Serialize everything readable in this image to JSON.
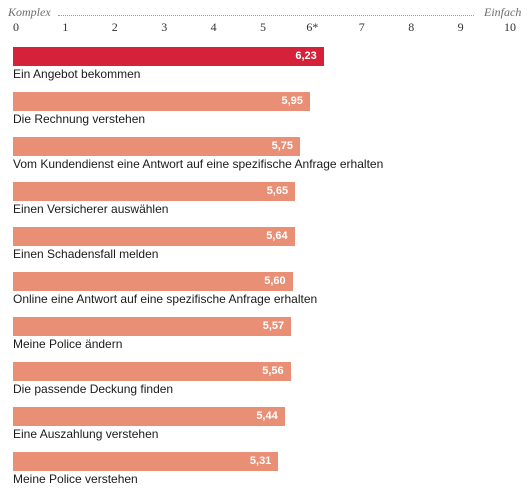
{
  "chart_data": {
    "type": "bar",
    "orientation": "horizontal",
    "scale_left_label": "Komplex",
    "scale_right_label": "Einfach",
    "xlim": [
      0,
      10
    ],
    "ticks": [
      "0",
      "1",
      "2",
      "3",
      "4",
      "5",
      "6*",
      "7",
      "8",
      "9",
      "10"
    ],
    "grid": false,
    "categories": [
      "Ein Angebot bekommen",
      "Die Rechnung verstehen",
      "Vom Kundendienst eine Antwort auf eine spezifische Anfrage erhalten",
      "Einen Versicherer auswählen",
      "Einen Schadensfall melden",
      "Online eine Antwort auf eine spezifische Anfrage erhalten",
      "Meine Police ändern",
      "Die passende Deckung finden",
      "Eine Auszahlung verstehen",
      "Meine Police verstehen"
    ],
    "values": [
      6.23,
      5.95,
      5.75,
      5.65,
      5.64,
      5.6,
      5.57,
      5.56,
      5.44,
      5.31
    ],
    "value_labels": [
      "6,23",
      "5,95",
      "5,75",
      "5,65",
      "5,64",
      "5,60",
      "5,57",
      "5,56",
      "5,44",
      "5,31"
    ],
    "highlight_index": 0,
    "colors": {
      "highlight": "#d5213a",
      "default": "#e98f76"
    }
  }
}
